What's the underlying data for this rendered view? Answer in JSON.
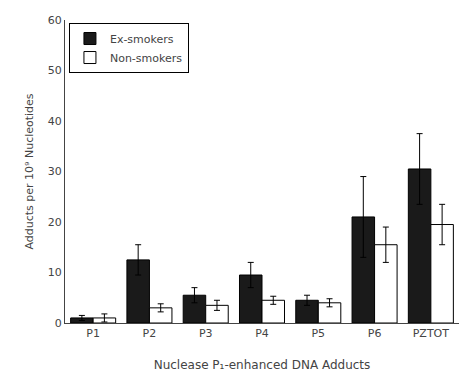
{
  "chart_data": {
    "type": "bar",
    "categories": [
      "P1",
      "P2",
      "P3",
      "P4",
      "P5",
      "P6",
      "PZTOT"
    ],
    "series": [
      {
        "name": "Ex-smokers",
        "color": "#1a1a1a",
        "values": [
          1.0,
          12.5,
          5.5,
          9.5,
          4.5,
          21.0,
          30.5
        ],
        "errors": [
          0.5,
          3.0,
          1.5,
          2.5,
          1.0,
          8.0,
          7.0
        ]
      },
      {
        "name": "Non-smokers",
        "color": "#ffffff",
        "values": [
          1.0,
          3.0,
          3.5,
          4.5,
          4.0,
          15.5,
          19.5
        ],
        "errors": [
          0.8,
          0.8,
          1.0,
          0.8,
          0.8,
          3.5,
          4.0
        ]
      }
    ],
    "xlabel": "Nuclease P₁-enhanced DNA Adducts",
    "ylabel": "Adducts per 10⁹ Nucleotides",
    "ylim": [
      0,
      60
    ],
    "yticks": [
      0,
      10,
      20,
      30,
      40,
      50,
      60
    ],
    "grid": false,
    "legend": "upper left"
  }
}
